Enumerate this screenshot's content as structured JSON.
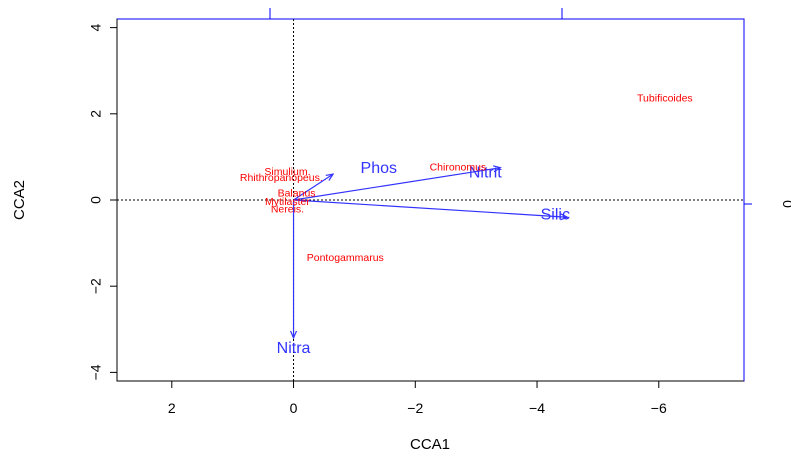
{
  "chart_data": {
    "type": "scatter",
    "xlabel": "CCA1",
    "ylabel": "CCA2",
    "xlim": [
      2.9,
      -7.4
    ],
    "ylim": [
      -4.2,
      4.2
    ],
    "x_ticks": [
      {
        "value": 2,
        "label": "2"
      },
      {
        "value": 0,
        "label": "0"
      },
      {
        "value": -2,
        "label": "−2"
      },
      {
        "value": -4,
        "label": "−4"
      },
      {
        "value": -6,
        "label": "−6"
      }
    ],
    "y_ticks": [
      {
        "value": 4,
        "label": "4"
      },
      {
        "value": 2,
        "label": "2"
      },
      {
        "value": 0,
        "label": "0"
      },
      {
        "value": -2,
        "label": "−2"
      },
      {
        "value": -4,
        "label": "−4"
      }
    ],
    "right_axis_partial_label": "0",
    "species": [
      {
        "name": "Tubificoides",
        "x": -6.1,
        "y": 2.35
      },
      {
        "name": "Chironomus",
        "x": -2.7,
        "y": 0.75
      },
      {
        "name": "Simulium.",
        "x": 0.1,
        "y": 0.65
      },
      {
        "name": "Rhithropanopeus.",
        "x": 0.2,
        "y": 0.5
      },
      {
        "name": "Balanus",
        "x": -0.05,
        "y": 0.15
      },
      {
        "name": "Mytilaster",
        "x": 0.1,
        "y": -0.05
      },
      {
        "name": "Nereis.",
        "x": 0.1,
        "y": -0.22
      },
      {
        "name": "Pontogammarus",
        "x": -0.85,
        "y": -1.35
      }
    ],
    "env_vectors": [
      {
        "name": "Phos",
        "x": -0.65,
        "y": 0.6,
        "label_x": -1.4,
        "label_y": 0.72
      },
      {
        "name": "Nitrit",
        "x": -3.4,
        "y": 0.75,
        "label_x": -3.15,
        "label_y": 0.62
      },
      {
        "name": "Silic",
        "x": -4.5,
        "y": -0.4,
        "label_x": -4.3,
        "label_y": -0.36
      },
      {
        "name": "Nitra",
        "x": 0.0,
        "y": -3.2,
        "label_x": 0.0,
        "label_y": -3.45
      }
    ],
    "reference_lines": {
      "x": 0,
      "y": 0,
      "style": "dotted"
    },
    "grid": false,
    "legend": "none"
  }
}
